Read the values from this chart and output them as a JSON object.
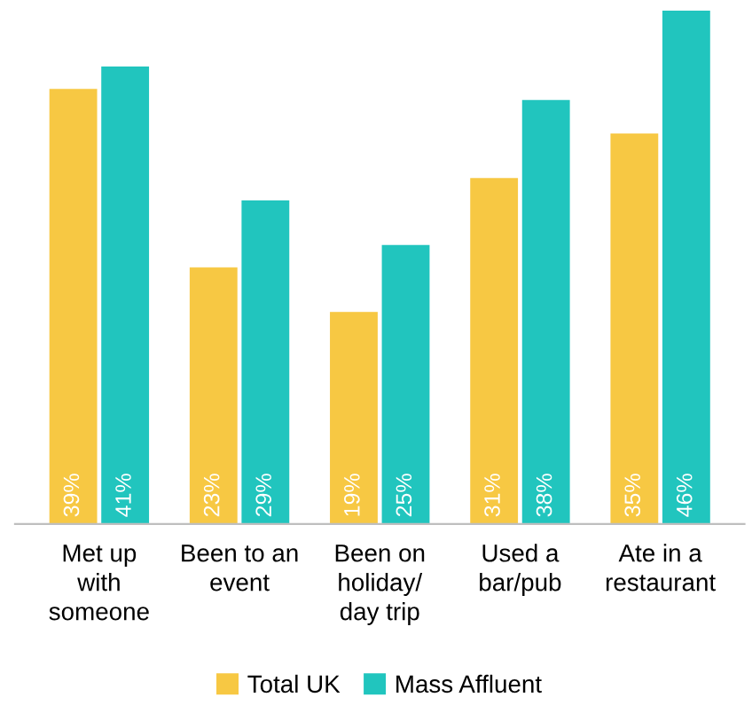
{
  "chart_data": {
    "type": "bar",
    "categories": [
      "Met up\nwith\nsomeone",
      "Been to an\nevent",
      "Been on\nholiday/\nday trip",
      "Used a\nbar/pub",
      "Ate in a\nrestaurant"
    ],
    "series": [
      {
        "name": "Total UK",
        "color": "#f7c843",
        "values": [
          39,
          23,
          19,
          31,
          35
        ],
        "value_labels": [
          "39%",
          "23%",
          "19%",
          "31%",
          "35%"
        ]
      },
      {
        "name": "Mass Affluent",
        "color": "#21c5be",
        "values": [
          41,
          29,
          25,
          38,
          46
        ],
        "value_labels": [
          "41%",
          "29%",
          "25%",
          "38%",
          "46%"
        ]
      }
    ],
    "ylim": [
      0,
      46
    ],
    "legend": "bottom",
    "grid": false
  }
}
